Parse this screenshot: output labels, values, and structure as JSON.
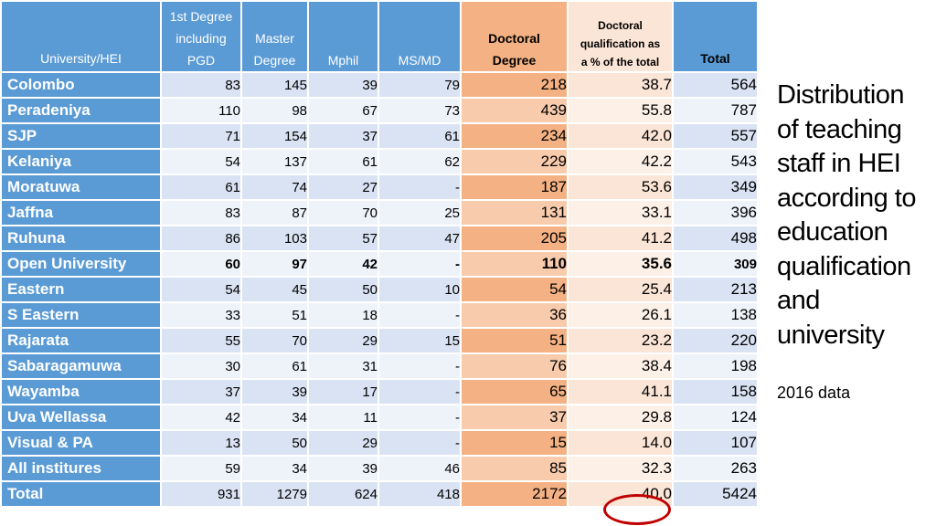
{
  "table": {
    "headers": [
      [
        "University/HEI"
      ],
      [
        "1st Degree",
        "including",
        "PGD"
      ],
      [
        "Master",
        "Degree"
      ],
      [
        "Mphil"
      ],
      [
        "MS/MD"
      ],
      [
        "Doctoral",
        "Degree"
      ],
      [
        "Doctoral",
        "qualification as",
        "a % of the total"
      ],
      [
        "Total"
      ]
    ],
    "rows": [
      [
        "Colombo",
        "83",
        "145",
        "39",
        "79",
        "218",
        "38.7",
        "564"
      ],
      [
        "Peradeniya",
        "110",
        "98",
        "67",
        "73",
        "439",
        "55.8",
        "787"
      ],
      [
        "SJP",
        "71",
        "154",
        "37",
        "61",
        "234",
        "42.0",
        "557"
      ],
      [
        "Kelaniya",
        "54",
        "137",
        "61",
        "62",
        "229",
        "42.2",
        "543"
      ],
      [
        "Moratuwa",
        "61",
        "74",
        "27",
        "-",
        "187",
        "53.6",
        "349"
      ],
      [
        "Jaffna",
        "83",
        "87",
        "70",
        "25",
        "131",
        "33.1",
        "396"
      ],
      [
        "Ruhuna",
        "86",
        "103",
        "57",
        "47",
        "205",
        "41.2",
        "498"
      ],
      [
        "Open University",
        "60",
        "97",
        "42",
        "-",
        "110",
        "35.6",
        "309"
      ],
      [
        "Eastern",
        "54",
        "45",
        "50",
        "10",
        "54",
        "25.4",
        "213"
      ],
      [
        "S Eastern",
        "33",
        "51",
        "18",
        "-",
        "36",
        "26.1",
        "138"
      ],
      [
        "Rajarata",
        "55",
        "70",
        "29",
        "15",
        "51",
        "23.2",
        "220"
      ],
      [
        "Sabaragamuwa",
        "30",
        "61",
        "31",
        "-",
        "76",
        "38.4",
        "198"
      ],
      [
        "Wayamba",
        "37",
        "39",
        "17",
        "-",
        "65",
        "41.1",
        "158"
      ],
      [
        "Uva Wellassa",
        "42",
        "34",
        "11",
        "-",
        "37",
        "29.8",
        "124"
      ],
      [
        "Visual & PA",
        "13",
        "50",
        "29",
        "-",
        "15",
        "14.0",
        "107"
      ],
      [
        "All institures",
        "59",
        "34",
        "39",
        "46",
        "85",
        "32.3",
        "263"
      ],
      [
        "Total",
        "931",
        "1279",
        "624",
        "418",
        "2172",
        "40.0",
        "5424"
      ]
    ],
    "bold_row_index": 7
  },
  "title_lines": [
    "Distribution",
    "of teaching",
    "staff in HEI",
    "according to",
    "education",
    "qualification",
    "and",
    "university"
  ],
  "subtitle": "2016 data",
  "colors": {
    "header_blue": "#5b9bd5",
    "doctoral_orange": "#f4b183",
    "percent_peach": "#fbe5d6",
    "annotation_red": "#c00000"
  }
}
